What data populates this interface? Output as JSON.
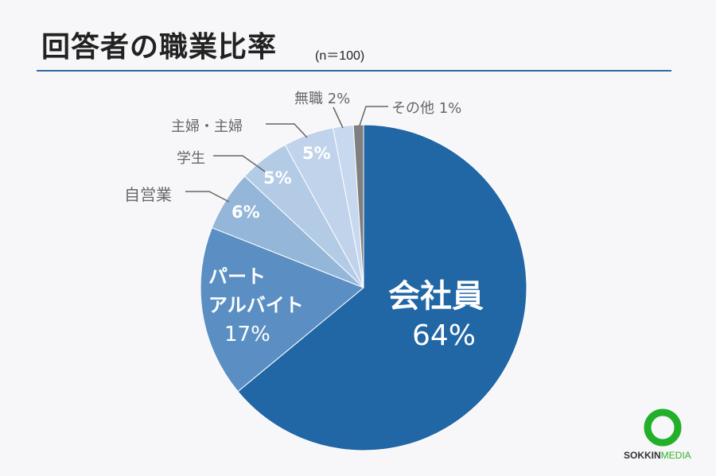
{
  "title": "回答者の職業比率",
  "subtitle": "(n＝100)",
  "chart_data": {
    "type": "pie",
    "start": "top, clockwise",
    "categories": [
      "会社員",
      "パート\nアルバイト",
      "自営業",
      "学生",
      "主婦・主婦",
      "無職",
      "その他"
    ],
    "values": [
      64,
      17,
      6,
      5,
      5,
      2,
      1
    ],
    "colors": [
      "#2166a5",
      "#5b8fc4",
      "#94b6d8",
      "#b4cbe6",
      "#c0d3ea",
      "#c8d8ee",
      "#7f7f7f"
    ],
    "labels": {
      "kaishain": "会社員",
      "kaishain_pct": "64%",
      "part1": "パート",
      "part2": "アルバイト",
      "part_pct": "17%",
      "jiei": "自営業",
      "jiei_pct": "6%",
      "gakusei": "学生",
      "gakusei_pct": "5%",
      "shufu": "主婦・主婦",
      "shufu_pct": "5%",
      "mushoku": "無職 2%",
      "sonota": "その他 1%"
    }
  },
  "logo": {
    "part1": "SOKKIN",
    "part2": "MEDIA",
    "ring_color": "#22b02a"
  }
}
